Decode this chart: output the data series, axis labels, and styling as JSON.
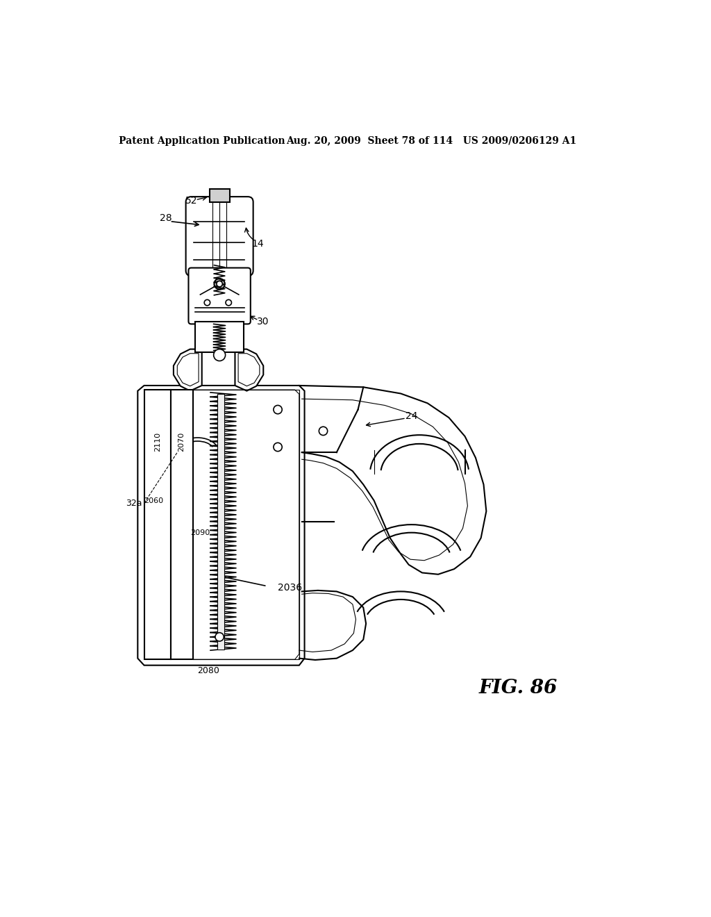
{
  "title_line1": "Patent Application Publication",
  "title_line2": "Aug. 20, 2009  Sheet 78 of 114   US 2009/0206129 A1",
  "fig_label": "FIG. 86",
  "background_color": "#ffffff",
  "line_color": "#000000"
}
